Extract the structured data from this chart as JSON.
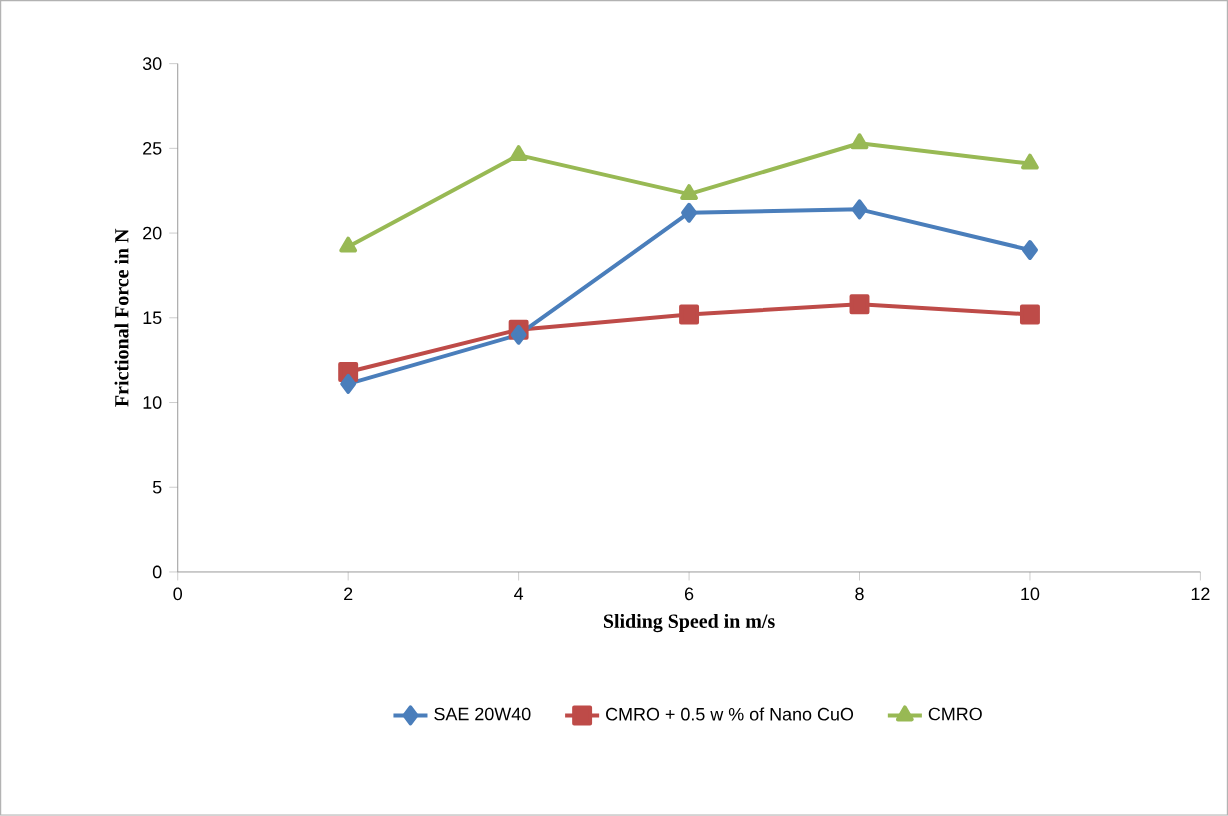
{
  "chart_data": {
    "type": "line",
    "xlabel": "Sliding Speed in m/s",
    "ylabel": "Frictional Force in N",
    "x": [
      2,
      4,
      6,
      8,
      10
    ],
    "series": [
      {
        "name": "SAE 20W40",
        "color": "#4a7ebb",
        "marker": "diamond",
        "values": [
          11.1,
          14.0,
          21.2,
          21.4,
          19.0
        ]
      },
      {
        "name": "CMRO + 0.5 w % of Nano CuO",
        "color": "#be4b48",
        "marker": "square",
        "values": [
          11.8,
          14.3,
          15.2,
          15.8,
          15.2
        ]
      },
      {
        "name": "CMRO",
        "color": "#98b954",
        "marker": "triangle",
        "values": [
          19.2,
          24.6,
          22.3,
          25.3,
          24.1
        ]
      }
    ],
    "xlim": [
      0,
      12
    ],
    "xticks": [
      0,
      2,
      4,
      6,
      8,
      10,
      12
    ],
    "ylim": [
      0,
      30
    ],
    "yticks": [
      0,
      5,
      10,
      15,
      20,
      25,
      30
    ],
    "grid": false,
    "legend": "bottom",
    "line_style": "solid"
  }
}
